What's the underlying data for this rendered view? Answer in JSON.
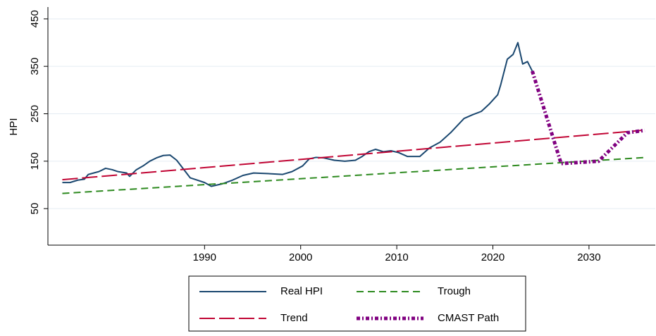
{
  "chart_data": {
    "type": "line",
    "y_label": "HPI",
    "xlim": [
      1973.7,
      2036.9
    ],
    "xticks": [
      1990,
      2000,
      2010,
      2020,
      2030
    ],
    "ylim": [
      -27,
      475
    ],
    "yticks": [
      50,
      150,
      250,
      350,
      450
    ],
    "grid": true,
    "series": [
      {
        "name": "Real HPI",
        "color": "#1a476f",
        "x": [
          1975.2,
          1976.0,
          1976.8,
          1977.5,
          1977.9,
          1979.0,
          1979.7,
          1980.4,
          1981.0,
          1981.9,
          1982.2,
          1982.9,
          1983.6,
          1984.3,
          1985.0,
          1985.7,
          1986.4,
          1987.1,
          1988.5,
          1990.0,
          1990.7,
          1991.8,
          1992.9,
          1994.0,
          1995.1,
          1996.5,
          1998.1,
          1999.1,
          2000.2,
          2000.9,
          2001.6,
          2002.4,
          2003.5,
          2004.6,
          2005.7,
          2006.4,
          2007.1,
          2007.8,
          2008.6,
          2009.4,
          2010.2,
          2011.1,
          2012.4,
          2013.4,
          2014.5,
          2015.6,
          2016.3,
          2017.0,
          2017.9,
          2018.8,
          2019.6,
          2020.5,
          2020.8,
          2021.5,
          2022.1,
          2022.6,
          2023.1,
          2023.6,
          2024.1
        ],
        "values": [
          105,
          105,
          110,
          112,
          122,
          128,
          135,
          132,
          128,
          125,
          118,
          132,
          140,
          150,
          157,
          162,
          163,
          152,
          115,
          105,
          97,
          102,
          110,
          120,
          125,
          124,
          122,
          128,
          140,
          155,
          158,
          157,
          152,
          150,
          152,
          160,
          170,
          175,
          170,
          172,
          168,
          160,
          160,
          178,
          190,
          210,
          225,
          240,
          248,
          255,
          270,
          290,
          310,
          365,
          375,
          400,
          355,
          360,
          340
        ]
      },
      {
        "name": "Trend",
        "color": "#c10534",
        "x": [
          1975.2,
          2035.5
        ],
        "values": [
          111,
          215
        ]
      },
      {
        "name": "Trough",
        "color": "#2d8a1f",
        "x": [
          1975.2,
          2036.0
        ],
        "values": [
          82,
          158
        ]
      },
      {
        "name": "CMAST Path",
        "color": "#800080",
        "x": [
          2024.1,
          2027.1,
          2031.0,
          2034.0,
          2035.8
        ],
        "values": [
          340,
          145,
          150,
          210,
          215
        ]
      }
    ]
  }
}
